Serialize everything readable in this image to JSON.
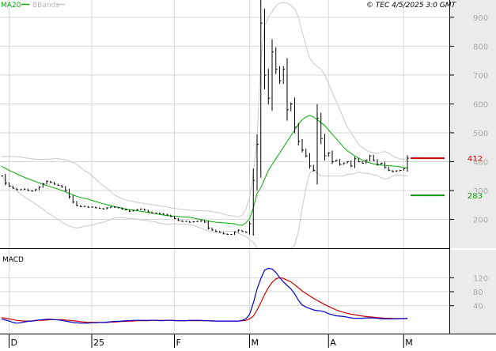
{
  "header": {
    "legend_ma": "MA20",
    "legend_bb": "BBands",
    "copyright": "© TEC 4/5/2025 3:0 GMT"
  },
  "colors": {
    "ma": "#00aa00",
    "bbands": "#c8c8c8",
    "price": "#000000",
    "macd": "#0000cc",
    "signal": "#cc0000",
    "resistance": "#cc0000",
    "support": "#009900",
    "axis_panel": "#ebebeb",
    "grid": "#d8d8d8"
  },
  "chart_data": [
    {
      "type": "bar",
      "subtype": "ohlc",
      "ylim": [
        100,
        960
      ],
      "yticks": [
        200,
        300,
        400,
        500,
        600,
        700,
        800,
        900
      ],
      "ytick_labels": [
        "200",
        "300",
        "400",
        "500",
        "600",
        "700",
        "800",
        "900"
      ],
      "xticks": [
        {
          "label": "D",
          "i": 2
        },
        {
          "label": "25",
          "i": 24
        },
        {
          "label": "F",
          "i": 46
        },
        {
          "label": "M",
          "i": 66
        },
        {
          "label": "A",
          "i": 87
        },
        {
          "label": "M",
          "i": 107
        }
      ],
      "n": 109,
      "grid": true,
      "closes": [
        350,
        325,
        315,
        308,
        303,
        303,
        305,
        300,
        298,
        303,
        312,
        323,
        332,
        328,
        322,
        318,
        312,
        300,
        278,
        260,
        248,
        244,
        245,
        242,
        243,
        240,
        238,
        236,
        240,
        243,
        242,
        240,
        236,
        233,
        228,
        231,
        234,
        236,
        232,
        226,
        222,
        222,
        220,
        218,
        215,
        210,
        203,
        196,
        193,
        193,
        190,
        192,
        193,
        195,
        190,
        170,
        163,
        158,
        155,
        150,
        148,
        148,
        156,
        163,
        158,
        155,
        185,
        335,
        460,
        880,
        700,
        620,
        780,
        720,
        680,
        720,
        580,
        600,
        520,
        470,
        440,
        420,
        385,
        370,
        550,
        480,
        420,
        430,
        400,
        405,
        390,
        395,
        400,
        385,
        410,
        400,
        395,
        405,
        420,
        405,
        390,
        395,
        380,
        370,
        365,
        368,
        370,
        375,
        412
      ],
      "ma20": [
        384,
        377,
        370,
        364,
        358,
        352,
        346,
        341,
        336,
        331,
        326,
        322,
        317,
        313,
        309,
        305,
        300,
        295,
        290,
        285,
        280,
        276,
        273,
        270,
        266,
        262,
        258,
        254,
        251,
        248,
        245,
        242,
        239,
        236,
        234,
        232,
        230,
        228,
        226,
        224,
        222,
        220,
        217,
        215,
        213,
        212,
        211,
        210,
        209,
        208,
        207,
        205,
        202,
        200,
        197,
        194,
        192,
        190,
        189,
        188,
        187,
        186,
        185,
        180,
        180,
        188,
        202,
        240,
        290,
        310,
        340,
        370,
        390,
        410,
        430,
        450,
        470,
        490,
        510,
        530,
        545,
        555,
        560,
        555,
        545,
        535,
        525,
        510,
        495,
        480,
        465,
        450,
        438,
        428,
        420,
        412,
        405,
        400,
        396,
        392,
        390,
        388,
        387,
        386,
        385,
        384,
        382,
        380,
        378
      ],
      "bb_upper": [
        417,
        418,
        418,
        418,
        417,
        416,
        414,
        412,
        410,
        409,
        408,
        408,
        409,
        409,
        410,
        410,
        409,
        407,
        403,
        397,
        390,
        380,
        370,
        362,
        352,
        340,
        328,
        318,
        308,
        297,
        285,
        278,
        272,
        268,
        265,
        262,
        259,
        257,
        255,
        253,
        251,
        249,
        247,
        245,
        243,
        240,
        238,
        236,
        235,
        233,
        232,
        231,
        230,
        230,
        229,
        229,
        227,
        225,
        222,
        219,
        215,
        213,
        211,
        208,
        214,
        235,
        275,
        360,
        480,
        750,
        870,
        900,
        920,
        940,
        950,
        950,
        950,
        940,
        930,
        900,
        850,
        800,
        760,
        740,
        730,
        720,
        700,
        670,
        640,
        610,
        580,
        550,
        520,
        500,
        480,
        460,
        450,
        440,
        434,
        430,
        428,
        432,
        435,
        430,
        420,
        414,
        410,
        408,
        406
      ],
      "bb_lower": [
        351,
        336,
        322,
        310,
        299,
        288,
        278,
        270,
        262,
        253,
        244,
        236,
        225,
        217,
        208,
        200,
        191,
        183,
        177,
        173,
        170,
        172,
        176,
        178,
        180,
        184,
        188,
        190,
        194,
        199,
        205,
        206,
        206,
        204,
        203,
        202,
        201,
        199,
        197,
        195,
        193,
        191,
        187,
        185,
        183,
        184,
        184,
        184,
        183,
        183,
        182,
        179,
        174,
        170,
        165,
        159,
        157,
        155,
        156,
        157,
        159,
        159,
        159,
        152,
        146,
        141,
        129,
        120,
        100,
        100,
        100,
        100,
        100,
        100,
        100,
        100,
        100,
        100,
        110,
        160,
        240,
        310,
        360,
        370,
        360,
        350,
        350,
        350,
        350,
        350,
        350,
        350,
        356,
        356,
        360,
        364,
        360,
        360,
        358,
        354,
        352,
        344,
        339,
        342,
        350,
        354,
        354,
        352,
        350
      ],
      "levels": [
        {
          "label": "412",
          "value": 412,
          "kind": "resistance"
        },
        {
          "label": "283",
          "value": 283,
          "kind": "support"
        }
      ]
    },
    {
      "type": "line",
      "title": "MACD",
      "ylim": [
        -40,
        200
      ],
      "yticks": [
        40,
        80,
        120
      ],
      "ytick_labels": [
        "40",
        "80",
        "120"
      ],
      "grid": true,
      "series": [
        {
          "values": [
            2,
            -1,
            -4,
            -8,
            -10,
            -9,
            -7,
            -5,
            -4,
            -2,
            -1,
            0,
            1,
            1,
            0,
            -1,
            -2,
            -4,
            -6,
            -8,
            -9,
            -10,
            -10,
            -10,
            -9,
            -9,
            -8,
            -8,
            -7,
            -6,
            -5,
            -5,
            -4,
            -3,
            -3,
            -2,
            -2,
            -2,
            -2,
            -2,
            -2,
            -2,
            -3,
            -3,
            -2,
            -2,
            -3,
            -3,
            -3,
            -3,
            -2,
            -2,
            -2,
            -2,
            -3,
            -3,
            -4,
            -4,
            -4,
            -4,
            -4,
            -4,
            -4,
            -4,
            -2,
            2,
            15,
            48,
            88,
            118,
            142,
            147,
            145,
            135,
            120,
            108,
            98,
            88,
            74,
            55,
            42,
            36,
            32,
            28,
            26,
            25,
            22,
            17,
            14,
            11,
            10,
            9,
            7,
            5,
            4,
            4,
            4,
            5,
            5,
            5,
            4,
            3,
            2,
            2,
            2,
            2,
            3,
            3,
            4
          ]
        },
        {
          "values": [
            6,
            4,
            2,
            0,
            -2,
            -3,
            -4,
            -4,
            -4,
            -3,
            -2,
            -2,
            -1,
            0,
            0,
            0,
            0,
            -1,
            -2,
            -3,
            -4,
            -6,
            -7,
            -8,
            -8,
            -8,
            -8,
            -8,
            -8,
            -7,
            -7,
            -6,
            -5,
            -5,
            -4,
            -4,
            -3,
            -3,
            -3,
            -3,
            -2,
            -2,
            -2,
            -2,
            -2,
            -2,
            -2,
            -3,
            -3,
            -3,
            -3,
            -3,
            -3,
            -3,
            -3,
            -3,
            -3,
            -4,
            -4,
            -4,
            -4,
            -4,
            -4,
            -4,
            -3,
            -2,
            2,
            10,
            28,
            50,
            72,
            92,
            107,
            117,
            120,
            118,
            113,
            108,
            100,
            91,
            82,
            75,
            68,
            61,
            55,
            49,
            43,
            38,
            33,
            28,
            24,
            21,
            18,
            16,
            14,
            12,
            10,
            9,
            8,
            7,
            6,
            5,
            4,
            4,
            3,
            3,
            3,
            3,
            3
          ]
        }
      ]
    }
  ]
}
